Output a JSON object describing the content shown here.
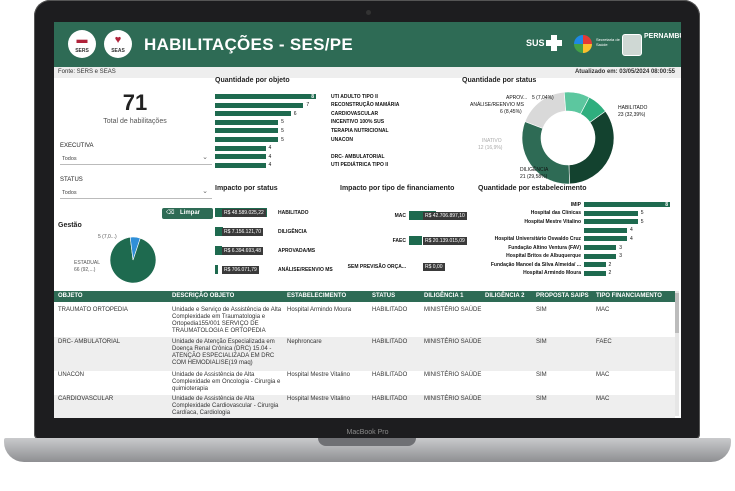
{
  "header": {
    "logo1_label": "SERS",
    "logo2_label": "SEAS",
    "title": "HABILITAÇÕES - SES/PE",
    "sus_label": "SUS",
    "secretaria_label": "Secretaria de Saúde",
    "gov_label": "PERNAMBUCO"
  },
  "subheader": {
    "fonte": "Fonte: SERS e SEAS",
    "atualizado": "Atualizado em: 03/05/2024 08:00:55"
  },
  "kpi": {
    "value": "71",
    "label": "Total de habilitações"
  },
  "filters": {
    "executiva_label": "EXECUTIVA",
    "executiva_value": "Todos",
    "status_label": "STATUS",
    "status_value": "Todos",
    "limpar": "Limpar"
  },
  "gestao": {
    "title": "Gestão",
    "label_small": "5 (7,0...)",
    "label_big_name": "ESTADUAL",
    "label_big_value": "66 (92,...)"
  },
  "sections": {
    "objeto": "Quantidade por objeto",
    "status": "Quantidade por status",
    "impacto_status": "Impacto por status",
    "impacto_financ": "Impacto por tipo de financiamento",
    "estab": "Quantidade por estabelecimento"
  },
  "chart_data": [
    {
      "type": "bar",
      "title": "Quantidade por objeto",
      "categories": [
        "UTI ADULTO TIPO II",
        "RECONSTRUÇÃO MAMÁRIA",
        "CARDIOVASCULAR",
        "INCENTIVO 100% SUS",
        "TERAPIA NUTRICIONAL",
        "UNACON",
        "",
        "DRC- AMBULATORIAL",
        "UTI PEDIÁTRICA TIPO II"
      ],
      "values": [
        8,
        7,
        6,
        5,
        5,
        5,
        4,
        4,
        4
      ],
      "color": "#1e6a4f"
    },
    {
      "type": "pie",
      "title": "Quantidade por status",
      "labels": [
        "HABILITADO",
        "DILIGÊNCIA",
        "INATIVO",
        "ANÁLISE/REENVIO MS",
        "APROV..."
      ],
      "values": [
        23,
        21,
        12,
        6,
        5
      ],
      "display": [
        "23 (32,39%)",
        "21 (29,58%)",
        "12 (16,9%)",
        "6 (8,45%)",
        "5 (7,04%)"
      ],
      "colors": [
        "#13422f",
        "#2e6b55",
        "#d9d9d9",
        "#5cc79f",
        "#2fae7e"
      ]
    },
    {
      "type": "bar",
      "title": "Impacto por status",
      "categories": [
        "HABILITADO",
        "DILIGÊNCIA",
        "APROVADA/MS",
        "ANÁLISE/REENVIO MS"
      ],
      "values": [
        48589025.22,
        7156121.7,
        6394693.48,
        706071.79
      ],
      "display": [
        "R$ 48.589.025,22",
        "R$ 7.156.121,70",
        "R$ 6.394.693,48",
        "R$ 706.071,79"
      ],
      "color": "#1e6a4f"
    },
    {
      "type": "bar",
      "title": "Impacto por tipo de financiamento",
      "categories": [
        "MAC",
        "FAEC",
        "SEM PREVISÃO ORÇA..."
      ],
      "values": [
        42706897.1,
        20139015.09,
        0
      ],
      "display": [
        "R$ 42.706.897,10",
        "R$ 20.139.015,09",
        "R$ 0,00"
      ],
      "color": "#1e6a4f"
    },
    {
      "type": "bar",
      "title": "Quantidade por estabelecimento",
      "categories": [
        "IMIP",
        "Hospital das Clínicas",
        "Hospital Mestre Vitalino",
        "",
        "Hospital Universitário Oswaldo Cruz",
        "Fundação Altino Ventura (FAV)",
        "Hospital Britos de Albuquerque",
        "Fundação Manoel da Silva Almeida/ ...",
        "Hospital Armindo Moura"
      ],
      "values": [
        8,
        5,
        5,
        4,
        4,
        3,
        3,
        2,
        2
      ],
      "color": "#1e6a4f"
    },
    {
      "type": "pie",
      "title": "Gestão",
      "labels": [
        "ESTADUAL",
        ""
      ],
      "values": [
        66,
        5
      ],
      "colors": [
        "#1e6a4f",
        "#2f8fd8"
      ]
    }
  ],
  "table": {
    "headers": [
      "OBJETO",
      "DESCRIÇÃO OBJETO",
      "ESTABELECIMENTO",
      "STATUS",
      "DILIGÊNCIA 1",
      "DILIGÊNCIA 2",
      "PROPOSTA SAIPS",
      "TIPO FINANCIAMENTO"
    ],
    "rows": [
      {
        "objeto": "TRAUMATO ORTOPEDIA",
        "descricao": "Unidade e Serviço de Assistência de Alta Complexidade em Traumatologia e Ortopedia155/001 SERVIÇO DE TRAUMATOLOGIA E ORTOPEDIA",
        "estabelecimento": "Hospital Armindo Moura",
        "status": "HABILITADO",
        "dil1": "MINISTÉRIO SAÚDE",
        "dil2": "",
        "saips": "SIM",
        "financ": "MAC"
      },
      {
        "objeto": "DRC- AMBULATORIAL",
        "descricao": "Unidade de Atenção Especializada em Doença Renal Crônica (DRC) 15.04 - ATENÇÃO ESPECIALIZADA EM DRC COM HEMODIALISE(19 maq)",
        "estabelecimento": "Nephroncare",
        "status": "HABILITADO",
        "dil1": "MINISTÉRIO SAÚDE",
        "dil2": "",
        "saips": "SIM",
        "financ": "FAEC"
      },
      {
        "objeto": "UNACON",
        "descricao": "Unidade de Assistência de Alta Complexidade em Oncologia - Cirurgia e quimioterapia",
        "estabelecimento": "Hospital Mestre Vitalino",
        "status": "HABILITADO",
        "dil1": "MINISTÉRIO SAÚDE",
        "dil2": "",
        "saips": "SIM",
        "financ": "MAC"
      },
      {
        "objeto": "CARDIOVASCULAR",
        "descricao": "Unidade de Assistência de Alta Complexidade Cardiovascular - Cirurgia Cardíaca, Cardiologia",
        "estabelecimento": "Hospital Mestre Vitalino",
        "status": "HABILITADO",
        "dil1": "MINISTÉRIO SAÚDE",
        "dil2": "",
        "saips": "SIM",
        "financ": "MAC"
      }
    ]
  },
  "device": {
    "brand": "MacBook Pro"
  }
}
